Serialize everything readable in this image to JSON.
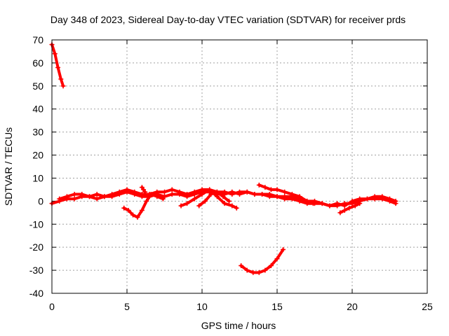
{
  "chart_data": {
    "type": "scatter",
    "title": "Day 348 of 2023, Sidereal Day-to-day VTEC variation (SDTVAR) for receiver prds",
    "xlabel": "GPS time / hours",
    "ylabel": "SDTVAR / TECUs",
    "xlim": [
      0,
      25
    ],
    "ylim": [
      -40,
      70
    ],
    "x_ticks": [
      0,
      5,
      10,
      15,
      20,
      25
    ],
    "x_tick_labels": [
      "0",
      "5",
      "10",
      "15",
      "20",
      "25"
    ],
    "y_ticks": [
      -40,
      -30,
      -20,
      -10,
      0,
      10,
      20,
      30,
      40,
      50,
      60,
      70
    ],
    "y_tick_labels": [
      "-40",
      "-30",
      "-20",
      "-10",
      "0",
      "10",
      "20",
      "30",
      "40",
      "50",
      "60",
      "70"
    ],
    "grid": true,
    "marker": "plus",
    "color": "#ff0000",
    "series": [
      {
        "name": "early-high",
        "x": [
          0.0,
          0.2,
          0.4,
          0.6,
          0.75
        ],
        "y": [
          68,
          64,
          58,
          53,
          50
        ]
      },
      {
        "name": "main-a",
        "x": [
          0.0,
          0.5,
          1.0,
          1.5,
          2.0,
          2.5,
          3.0,
          3.5,
          4.0,
          4.5,
          5.0,
          5.5,
          6.0,
          6.5,
          7.0,
          7.5,
          8.0,
          8.5,
          9.0,
          9.5,
          10.0,
          10.5,
          11.0,
          11.5,
          12.0,
          12.5,
          13.0,
          13.5,
          14.0,
          14.5,
          15.0,
          15.5,
          16.0,
          16.5,
          17.0,
          17.5,
          18.0,
          18.5,
          19.0,
          19.5,
          20.0,
          20.5,
          21.0,
          21.5,
          22.0,
          22.5,
          22.9
        ],
        "y": [
          -1,
          0,
          1,
          1,
          2,
          2,
          1,
          2,
          2,
          3,
          4,
          3,
          2,
          2,
          3,
          2,
          3,
          3,
          2,
          3,
          4,
          4,
          3,
          3,
          4,
          3,
          4,
          3,
          3,
          2,
          2,
          1,
          1,
          0,
          -1,
          -1,
          -1,
          -2,
          -2,
          -1,
          -1,
          0,
          1,
          1,
          1,
          0,
          -1
        ]
      },
      {
        "name": "main-b",
        "x": [
          0.5,
          1.0,
          1.5,
          2.0,
          2.5,
          3.0,
          3.5,
          4.0,
          4.5,
          5.0,
          5.5,
          6.0,
          6.5,
          7.0,
          7.5,
          8.0,
          8.5,
          9.0,
          9.5,
          10.0,
          10.5,
          11.0,
          11.5,
          12.0,
          12.5,
          13.0,
          13.5,
          14.0,
          14.5,
          15.0,
          15.5,
          16.0,
          16.5,
          17.0,
          17.5,
          18.0,
          18.5,
          19.0,
          19.5,
          20.0,
          20.5,
          21.0,
          21.5,
          22.0,
          22.5,
          22.9
        ],
        "y": [
          1,
          2,
          3,
          3,
          2,
          3,
          2,
          3,
          4,
          5,
          4,
          3,
          3,
          4,
          4,
          5,
          4,
          3,
          4,
          5,
          5,
          4,
          4,
          3,
          4,
          4,
          3,
          3,
          3,
          2,
          2,
          2,
          1,
          0,
          0,
          -1,
          -2,
          -1,
          -2,
          0,
          1,
          1,
          2,
          2,
          1,
          0
        ]
      },
      {
        "name": "dip-mid",
        "x": [
          4.8,
          5.1,
          5.4,
          5.7,
          6.0,
          6.3,
          6.6,
          7.0,
          7.4
        ],
        "y": [
          -3,
          -4,
          -6,
          -7,
          -4,
          0,
          3,
          2,
          1
        ]
      },
      {
        "name": "cross-mid",
        "x": [
          8.6,
          9.0,
          9.5,
          10.0,
          10.5,
          11.0,
          11.5,
          12.0,
          12.3
        ],
        "y": [
          -2,
          -1,
          1,
          3,
          5,
          2,
          -1,
          -2,
          -3
        ]
      },
      {
        "name": "cross-mid-b",
        "x": [
          9.8,
          10.2,
          10.6,
          11.0,
          11.4,
          11.8
        ],
        "y": [
          -2,
          0,
          3,
          4,
          2,
          0
        ]
      },
      {
        "name": "rising-late",
        "x": [
          13.8,
          14.2,
          14.6,
          15.0,
          15.5,
          16.0,
          16.5,
          17.0,
          17.4
        ],
        "y": [
          7,
          6,
          5,
          5,
          4,
          3,
          2,
          0,
          -1
        ]
      },
      {
        "name": "spike-6",
        "x": [
          6.0,
          6.1,
          6.2
        ],
        "y": [
          6,
          5,
          4
        ]
      },
      {
        "name": "late-dip",
        "x": [
          19.2,
          19.5,
          19.8,
          20.2,
          20.5
        ],
        "y": [
          -5,
          -4,
          -3,
          -2,
          -1
        ]
      },
      {
        "name": "low-arc",
        "x": [
          12.6,
          13.0,
          13.4,
          13.8,
          14.2,
          14.6,
          15.0,
          15.4
        ],
        "y": [
          -28,
          -30,
          -31,
          -31,
          -30,
          -28,
          -25,
          -21
        ]
      }
    ]
  }
}
